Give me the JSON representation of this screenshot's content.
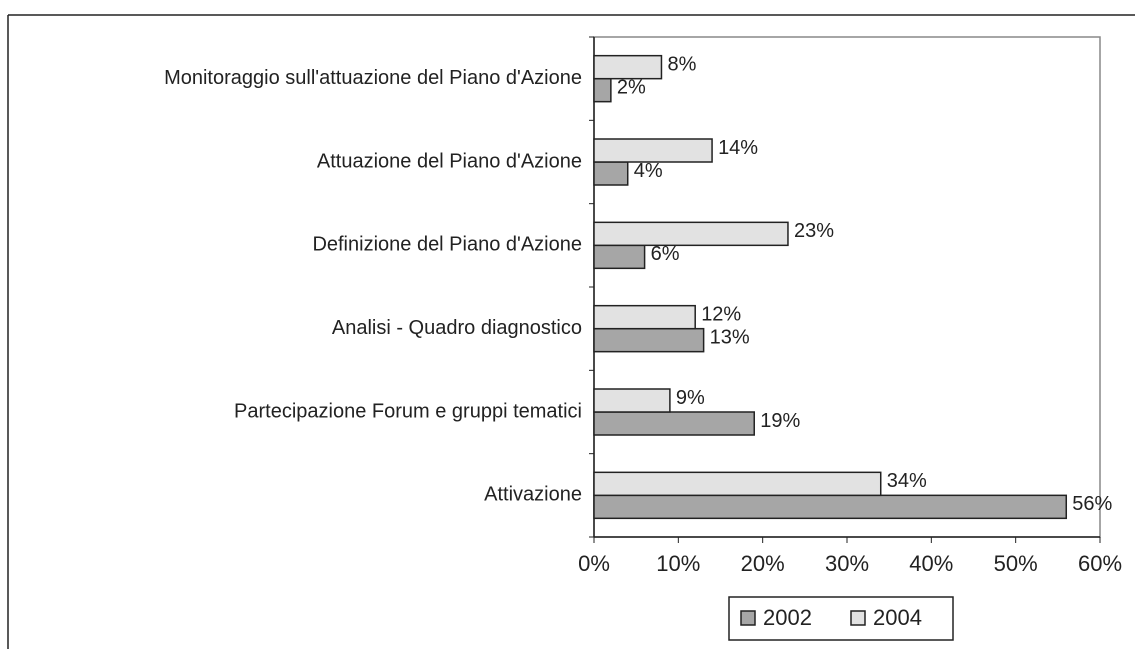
{
  "chart_data": {
    "type": "hbar",
    "categories": [
      "Monitoraggio sull'attuazione del Piano d'Azione",
      "Attuazione del Piano d'Azione",
      "Definizione del Piano d'Azione",
      "Analisi - Quadro diagnostico",
      "Partecipazione Forum e gruppi tematici",
      "Attivazione"
    ],
    "series": [
      {
        "name": "2002",
        "color": "#a6a6a6",
        "values": [
          2,
          4,
          6,
          13,
          19,
          56
        ],
        "value_labels": [
          "2%",
          "4%",
          "6%",
          "13%",
          "19%",
          "56%"
        ]
      },
      {
        "name": "2004",
        "color": "#e2e2e2",
        "values": [
          8,
          14,
          23,
          12,
          9,
          34
        ],
        "value_labels": [
          "8%",
          "14%",
          "23%",
          "12%",
          "9%",
          "34%"
        ]
      }
    ],
    "xlim": [
      0,
      60
    ],
    "xticks": [
      {
        "value": 0,
        "label": "0%"
      },
      {
        "value": 10,
        "label": "10%"
      },
      {
        "value": 20,
        "label": "20%"
      },
      {
        "value": 30,
        "label": "30%"
      },
      {
        "value": 40,
        "label": "40%"
      },
      {
        "value": 50,
        "label": "50%"
      },
      {
        "value": 60,
        "label": "60%"
      }
    ],
    "legend": "bottom"
  }
}
